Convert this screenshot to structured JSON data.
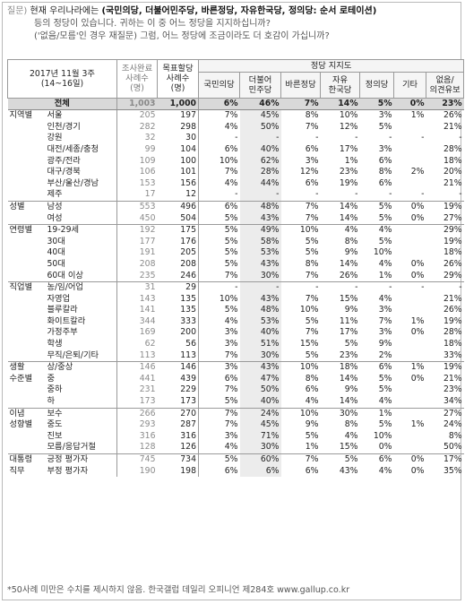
{
  "question": {
    "label": "질문)",
    "line1_prefix": "현재 우리나라에는",
    "line1_bold": "(국민의당, 더불어민주당, 바른정당, 자유한국당, 정의당: 순서 로테이션)",
    "line2": "등의 정당이 있습니다. 귀하는 이 중 어느 정당을 지지하십니까?",
    "line3": "('없음/모름'인 경우 재질문) 그럼, 어느 정당에 조금이라도 더 호감이 가십니까?"
  },
  "header": {
    "period_line1": "2017년 11월 3주",
    "period_line2": "(14~16일)",
    "n1_label": [
      "조사완료",
      "사례수",
      "(명)"
    ],
    "n2_label": [
      "목표할당",
      "사례수",
      "(명)"
    ],
    "party_group": "정당 지지도",
    "parties": [
      [
        "국민의당"
      ],
      [
        "더불어",
        "민주당"
      ],
      [
        "바른정당"
      ],
      [
        "자유",
        "한국당"
      ],
      [
        "정의당"
      ],
      [
        "기타"
      ],
      [
        "없음/",
        "의견유보"
      ]
    ]
  },
  "rows": [
    {
      "group": "전체",
      "sub": "",
      "n1": "1,003",
      "n2": "1,000",
      "v": [
        "6%",
        "46%",
        "7%",
        "14%",
        "5%",
        "0%",
        "23%"
      ],
      "total": true
    },
    {
      "group": "지역별",
      "sub": "서울",
      "n1": "205",
      "n2": "197",
      "v": [
        "7%",
        "45%",
        "8%",
        "10%",
        "3%",
        "1%",
        "26%"
      ],
      "gs": true
    },
    {
      "group": "",
      "sub": "인천/경기",
      "n1": "282",
      "n2": "298",
      "v": [
        "4%",
        "50%",
        "7%",
        "12%",
        "5%",
        "",
        "21%"
      ]
    },
    {
      "group": "",
      "sub": "강원",
      "n1": "32",
      "n2": "30",
      "v": [
        "-",
        "-",
        "-",
        "-",
        "-",
        "-",
        "-"
      ]
    },
    {
      "group": "",
      "sub": "대전/세종/충청",
      "n1": "99",
      "n2": "104",
      "v": [
        "6%",
        "40%",
        "6%",
        "17%",
        "3%",
        "",
        "28%"
      ]
    },
    {
      "group": "",
      "sub": "광주/전라",
      "n1": "109",
      "n2": "100",
      "v": [
        "10%",
        "62%",
        "3%",
        "1%",
        "6%",
        "",
        "18%"
      ]
    },
    {
      "group": "",
      "sub": "대구/경북",
      "n1": "106",
      "n2": "101",
      "v": [
        "7%",
        "28%",
        "12%",
        "23%",
        "8%",
        "2%",
        "20%"
      ]
    },
    {
      "group": "",
      "sub": "부산/울산/경남",
      "n1": "153",
      "n2": "156",
      "v": [
        "4%",
        "44%",
        "6%",
        "19%",
        "6%",
        "",
        "21%"
      ]
    },
    {
      "group": "",
      "sub": "제주",
      "n1": "17",
      "n2": "12",
      "v": [
        "-",
        "-",
        "-",
        "-",
        "-",
        "-",
        "-"
      ]
    },
    {
      "group": "성별",
      "sub": "남성",
      "n1": "553",
      "n2": "496",
      "v": [
        "6%",
        "48%",
        "7%",
        "14%",
        "5%",
        "0%",
        "19%"
      ],
      "gs": true
    },
    {
      "group": "",
      "sub": "여성",
      "n1": "450",
      "n2": "504",
      "v": [
        "5%",
        "43%",
        "7%",
        "14%",
        "5%",
        "0%",
        "27%"
      ]
    },
    {
      "group": "연령별",
      "sub": "19-29세",
      "n1": "192",
      "n2": "175",
      "v": [
        "5%",
        "49%",
        "10%",
        "4%",
        "4%",
        "",
        "29%"
      ],
      "gs": true
    },
    {
      "group": "",
      "sub": "30대",
      "n1": "177",
      "n2": "176",
      "v": [
        "5%",
        "58%",
        "5%",
        "8%",
        "5%",
        "",
        "19%"
      ]
    },
    {
      "group": "",
      "sub": "40대",
      "n1": "191",
      "n2": "205",
      "v": [
        "5%",
        "53%",
        "5%",
        "9%",
        "10%",
        "",
        "18%"
      ]
    },
    {
      "group": "",
      "sub": "50대",
      "n1": "208",
      "n2": "208",
      "v": [
        "5%",
        "43%",
        "8%",
        "14%",
        "4%",
        "0%",
        "26%"
      ]
    },
    {
      "group": "",
      "sub": "60대 이상",
      "n1": "235",
      "n2": "246",
      "v": [
        "7%",
        "30%",
        "7%",
        "26%",
        "1%",
        "0%",
        "29%"
      ]
    },
    {
      "group": "직업별",
      "sub": "농/임/어업",
      "n1": "31",
      "n2": "29",
      "v": [
        "-",
        "-",
        "-",
        "-",
        "-",
        "-",
        "-"
      ],
      "gs": true
    },
    {
      "group": "",
      "sub": "자영업",
      "n1": "143",
      "n2": "135",
      "v": [
        "10%",
        "43%",
        "7%",
        "15%",
        "4%",
        "",
        "21%"
      ]
    },
    {
      "group": "",
      "sub": "블루칼라",
      "n1": "141",
      "n2": "135",
      "v": [
        "5%",
        "48%",
        "10%",
        "9%",
        "3%",
        "",
        "26%"
      ]
    },
    {
      "group": "",
      "sub": "화이트칼라",
      "n1": "344",
      "n2": "333",
      "v": [
        "4%",
        "53%",
        "5%",
        "11%",
        "7%",
        "1%",
        "19%"
      ]
    },
    {
      "group": "",
      "sub": "가정주부",
      "n1": "169",
      "n2": "200",
      "v": [
        "3%",
        "40%",
        "7%",
        "17%",
        "3%",
        "0%",
        "28%"
      ]
    },
    {
      "group": "",
      "sub": "학생",
      "n1": "62",
      "n2": "56",
      "v": [
        "3%",
        "51%",
        "15%",
        "5%",
        "9%",
        "",
        "18%"
      ]
    },
    {
      "group": "",
      "sub": "무직/은퇴/기타",
      "n1": "113",
      "n2": "113",
      "v": [
        "7%",
        "30%",
        "5%",
        "23%",
        "2%",
        "",
        "33%"
      ]
    },
    {
      "group": "생활",
      "sub": "상/중상",
      "n1": "146",
      "n2": "146",
      "v": [
        "3%",
        "43%",
        "10%",
        "18%",
        "6%",
        "1%",
        "19%"
      ],
      "gs": true
    },
    {
      "group": "수준별",
      "sub": "중",
      "n1": "441",
      "n2": "439",
      "v": [
        "6%",
        "47%",
        "8%",
        "14%",
        "5%",
        "0%",
        "21%"
      ]
    },
    {
      "group": "",
      "sub": "중하",
      "n1": "231",
      "n2": "229",
      "v": [
        "7%",
        "50%",
        "6%",
        "9%",
        "5%",
        "",
        "23%"
      ]
    },
    {
      "group": "",
      "sub": "하",
      "n1": "173",
      "n2": "173",
      "v": [
        "5%",
        "40%",
        "4%",
        "14%",
        "4%",
        "",
        "34%"
      ]
    },
    {
      "group": "이념",
      "sub": "보수",
      "n1": "266",
      "n2": "270",
      "v": [
        "7%",
        "24%",
        "10%",
        "30%",
        "1%",
        "",
        "27%"
      ],
      "gs": true
    },
    {
      "group": "성향별",
      "sub": "중도",
      "n1": "293",
      "n2": "287",
      "v": [
        "7%",
        "45%",
        "9%",
        "8%",
        "5%",
        "1%",
        "24%"
      ]
    },
    {
      "group": "",
      "sub": "진보",
      "n1": "316",
      "n2": "316",
      "v": [
        "3%",
        "71%",
        "5%",
        "4%",
        "10%",
        "",
        "8%"
      ]
    },
    {
      "group": "",
      "sub": "모름/응답거절",
      "n1": "128",
      "n2": "126",
      "v": [
        "4%",
        "30%",
        "1%",
        "15%",
        "0%",
        "",
        "50%"
      ]
    },
    {
      "group": "대통령",
      "sub": "긍정 평가자",
      "n1": "745",
      "n2": "734",
      "v": [
        "5%",
        "60%",
        "7%",
        "5%",
        "6%",
        "0%",
        "17%"
      ],
      "gs": true
    },
    {
      "group": "직무",
      "sub": "부정 평가자",
      "n1": "190",
      "n2": "198",
      "v": [
        "6%",
        "6%",
        "6%",
        "43%",
        "4%",
        "0%",
        "35%"
      ]
    }
  ],
  "footnote": "*50사례 미만은 수치를 제시하지 않음. 한국갤럽 데일리 오피니언 제284호 www.gallup.co.kr"
}
